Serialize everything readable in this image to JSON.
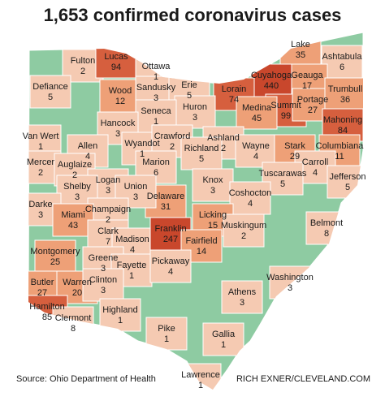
{
  "title": "1,653 confirmed coronavirus cases",
  "base_color": "#8ecba2",
  "counties": [
    {
      "name": "Fulton",
      "cases": 2,
      "color": "#f5cab2"
    },
    {
      "name": "Lucas",
      "cases": 94,
      "color": "#d65f3e"
    },
    {
      "name": "Ottawa",
      "cases": 1,
      "color": "#f5cab2"
    },
    {
      "name": "Defiance",
      "cases": 5,
      "color": "#f5cab2"
    },
    {
      "name": "Wood",
      "cases": 12,
      "color": "#eea077"
    },
    {
      "name": "Sandusky",
      "cases": 3,
      "color": "#f5cab2"
    },
    {
      "name": "Erie",
      "cases": 5,
      "color": "#f5cab2"
    },
    {
      "name": "Lake",
      "cases": 35,
      "color": "#eea077"
    },
    {
      "name": "Ashtabula",
      "cases": 6,
      "color": "#f5cab2"
    },
    {
      "name": "Geauga",
      "cases": 17,
      "color": "#eea077"
    },
    {
      "name": "Cuyahoga",
      "cases": 440,
      "color": "#c9472c"
    },
    {
      "name": "Lorain",
      "cases": 74,
      "color": "#d65f3e"
    },
    {
      "name": "Summit",
      "cases": 99,
      "color": "#d65f3e"
    },
    {
      "name": "Portage",
      "cases": 27,
      "color": "#eea077"
    },
    {
      "name": "Trumbull",
      "cases": 36,
      "color": "#eea077"
    },
    {
      "name": "Medina",
      "cases": 45,
      "color": "#eea077"
    },
    {
      "name": "Mahoning",
      "cases": 84,
      "color": "#d65f3e"
    },
    {
      "name": "Huron",
      "cases": 3,
      "color": "#f5cab2"
    },
    {
      "name": "Seneca",
      "cases": 1,
      "color": "#f5cab2"
    },
    {
      "name": "Hancock",
      "cases": 3,
      "color": "#f5cab2"
    },
    {
      "name": "Van Wert",
      "cases": 1,
      "color": "#f5cab2"
    },
    {
      "name": "Allen",
      "cases": 4,
      "color": "#f5cab2"
    },
    {
      "name": "Wyandot",
      "cases": 1,
      "color": "#f5cab2"
    },
    {
      "name": "Crawford",
      "cases": 2,
      "color": "#f5cab2"
    },
    {
      "name": "Ashland",
      "cases": 2,
      "color": "#f5cab2"
    },
    {
      "name": "Richland",
      "cases": 5,
      "color": "#f5cab2"
    },
    {
      "name": "Wayne",
      "cases": 4,
      "color": "#f5cab2"
    },
    {
      "name": "Stark",
      "cases": 29,
      "color": "#eea077"
    },
    {
      "name": "Columbiana",
      "cases": 11,
      "color": "#eea077"
    },
    {
      "name": "Mercer",
      "cases": 2,
      "color": "#f5cab2"
    },
    {
      "name": "Auglaize",
      "cases": 2,
      "color": "#f5cab2"
    },
    {
      "name": "Marion",
      "cases": 6,
      "color": "#f5cab2"
    },
    {
      "name": "Carroll",
      "cases": 4,
      "color": "#f5cab2"
    },
    {
      "name": "Jefferson",
      "cases": 5,
      "color": "#f5cab2"
    },
    {
      "name": "Tuscarawas",
      "cases": 5,
      "color": "#f5cab2"
    },
    {
      "name": "Knox",
      "cases": 3,
      "color": "#f5cab2"
    },
    {
      "name": "Delaware",
      "cases": 31,
      "color": "#eea077"
    },
    {
      "name": "Logan",
      "cases": 3,
      "color": "#f5cab2"
    },
    {
      "name": "Union",
      "cases": 3,
      "color": "#f5cab2"
    },
    {
      "name": "Shelby",
      "cases": 3,
      "color": "#f5cab2"
    },
    {
      "name": "Darke",
      "cases": 3,
      "color": "#f5cab2"
    },
    {
      "name": "Coshocton",
      "cases": 4,
      "color": "#f5cab2"
    },
    {
      "name": "Licking",
      "cases": 15,
      "color": "#eea077"
    },
    {
      "name": "Champaign",
      "cases": 2,
      "color": "#f5cab2"
    },
    {
      "name": "Miami",
      "cases": 43,
      "color": "#eea077"
    },
    {
      "name": "Muskingum",
      "cases": 2,
      "color": "#f5cab2"
    },
    {
      "name": "Belmont",
      "cases": 8,
      "color": "#f5cab2"
    },
    {
      "name": "Clark",
      "cases": 7,
      "color": "#f5cab2"
    },
    {
      "name": "Madison",
      "cases": 4,
      "color": "#f5cab2"
    },
    {
      "name": "Franklin",
      "cases": 247,
      "color": "#c9472c"
    },
    {
      "name": "Fairfield",
      "cases": 14,
      "color": "#eea077"
    },
    {
      "name": "Montgomery",
      "cases": 25,
      "color": "#eea077"
    },
    {
      "name": "Greene",
      "cases": 3,
      "color": "#f5cab2"
    },
    {
      "name": "Fayette",
      "cases": 1,
      "color": "#f5cab2"
    },
    {
      "name": "Pickaway",
      "cases": 4,
      "color": "#f5cab2"
    },
    {
      "name": "Washington",
      "cases": 3,
      "color": "#f5cab2"
    },
    {
      "name": "Butler",
      "cases": 27,
      "color": "#eea077"
    },
    {
      "name": "Warren",
      "cases": 20,
      "color": "#eea077"
    },
    {
      "name": "Clinton",
      "cases": 3,
      "color": "#f5cab2"
    },
    {
      "name": "Athens",
      "cases": 3,
      "color": "#f5cab2"
    },
    {
      "name": "Hamilton",
      "cases": 85,
      "color": "#d65f3e"
    },
    {
      "name": "Clermont",
      "cases": 8,
      "color": "#f5cab2"
    },
    {
      "name": "Highland",
      "cases": 1,
      "color": "#f5cab2"
    },
    {
      "name": "Pike",
      "cases": 1,
      "color": "#f5cab2"
    },
    {
      "name": "Gallia",
      "cases": 1,
      "color": "#f5cab2"
    },
    {
      "name": "Lawrence",
      "cases": 1,
      "color": "#f5cab2"
    }
  ],
  "source": "Source: Ohio Department of Health",
  "credit": "RICH EXNER/CLEVELAND.COM"
}
